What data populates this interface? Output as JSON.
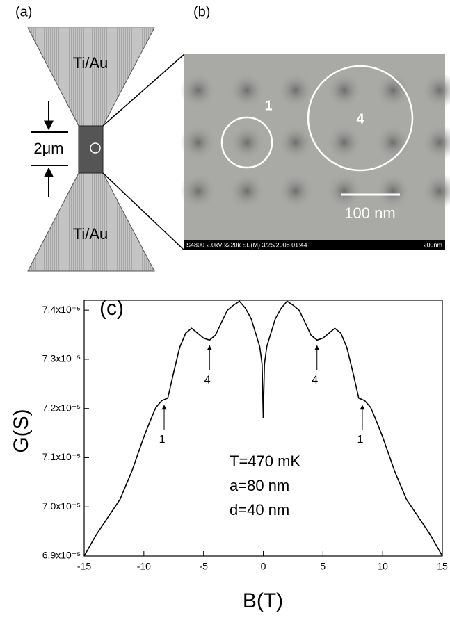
{
  "panel_a": {
    "label": "(a)",
    "top_label": "Ti/Au",
    "bottom_label": "Ti/Au",
    "scale_label": "2μm"
  },
  "panel_b": {
    "label": "(b)",
    "circle_labels": [
      "1",
      "4"
    ],
    "scale_label": "100 nm",
    "info_bar": "S4800 2.0kV x220k SE(M) 3/25/2008 01:44",
    "info_scale": "200nm"
  },
  "chart_data": {
    "type": "line",
    "panel_label": "(c)",
    "x_label": "B(T)",
    "y_label": "G(S)",
    "color": "#000000",
    "x": [
      -15,
      -14,
      -13,
      -12,
      -11,
      -10,
      -9.5,
      -9,
      -8.5,
      -8,
      -7.5,
      -7,
      -6.5,
      -6,
      -5.5,
      -5,
      -4.5,
      -4,
      -3.5,
      -3,
      -2.5,
      -2,
      -1.5,
      -1,
      -0.6,
      -0.3,
      -0.1,
      0,
      0.1,
      0.3,
      0.6,
      1,
      1.5,
      2,
      2.5,
      3,
      3.5,
      4,
      4.5,
      5,
      5.5,
      6,
      6.5,
      7,
      7.5,
      8,
      8.5,
      9,
      9.5,
      10,
      11,
      12,
      13,
      14,
      15
    ],
    "values": [
      6.9e-05,
      6.943e-05,
      6.979e-05,
      7.015e-05,
      7.073e-05,
      7.142e-05,
      7.173e-05,
      7.202e-05,
      7.216e-05,
      7.221e-05,
      7.274e-05,
      7.324e-05,
      7.353e-05,
      7.363e-05,
      7.353e-05,
      7.343e-05,
      7.339e-05,
      7.349e-05,
      7.375e-05,
      7.4e-05,
      7.41e-05,
      7.418e-05,
      7.404e-05,
      7.382e-05,
      7.35e-05,
      7.326e-05,
      7.29e-05,
      7.18e-05,
      7.29e-05,
      7.326e-05,
      7.35e-05,
      7.382e-05,
      7.404e-05,
      7.418e-05,
      7.41e-05,
      7.4e-05,
      7.375e-05,
      7.349e-05,
      7.339e-05,
      7.343e-05,
      7.353e-05,
      7.363e-05,
      7.353e-05,
      7.324e-05,
      7.274e-05,
      7.221e-05,
      7.216e-05,
      7.202e-05,
      7.173e-05,
      7.142e-05,
      7.073e-05,
      7.015e-05,
      6.979e-05,
      6.943e-05,
      6.9e-05
    ],
    "xlim": [
      -15,
      15
    ],
    "xticks": [
      -15,
      -10,
      -5,
      0,
      5,
      10,
      15
    ],
    "ylim": [
      6.9e-05,
      7.42e-05
    ],
    "yticks": [
      {
        "value": 6.9e-05,
        "label": "6.9x10⁻⁵"
      },
      {
        "value": 7e-05,
        "label": "7.0x10⁻⁵"
      },
      {
        "value": 7.1e-05,
        "label": "7.1x10⁻⁵"
      },
      {
        "value": 7.2e-05,
        "label": "7.2x10⁻⁵"
      },
      {
        "value": 7.3e-05,
        "label": "7.3x10⁻⁵"
      },
      {
        "value": 7.4e-05,
        "label": "7.4x10⁻⁵"
      }
    ],
    "annotations": [
      {
        "text": "1",
        "x": -8.3
      },
      {
        "text": "4",
        "x": -4.5
      },
      {
        "text": "4",
        "x": 4.5
      },
      {
        "text": "1",
        "x": 8.3
      }
    ],
    "notes": [
      "T=470 mK",
      "a=80 nm",
      "d=40 nm"
    ]
  }
}
